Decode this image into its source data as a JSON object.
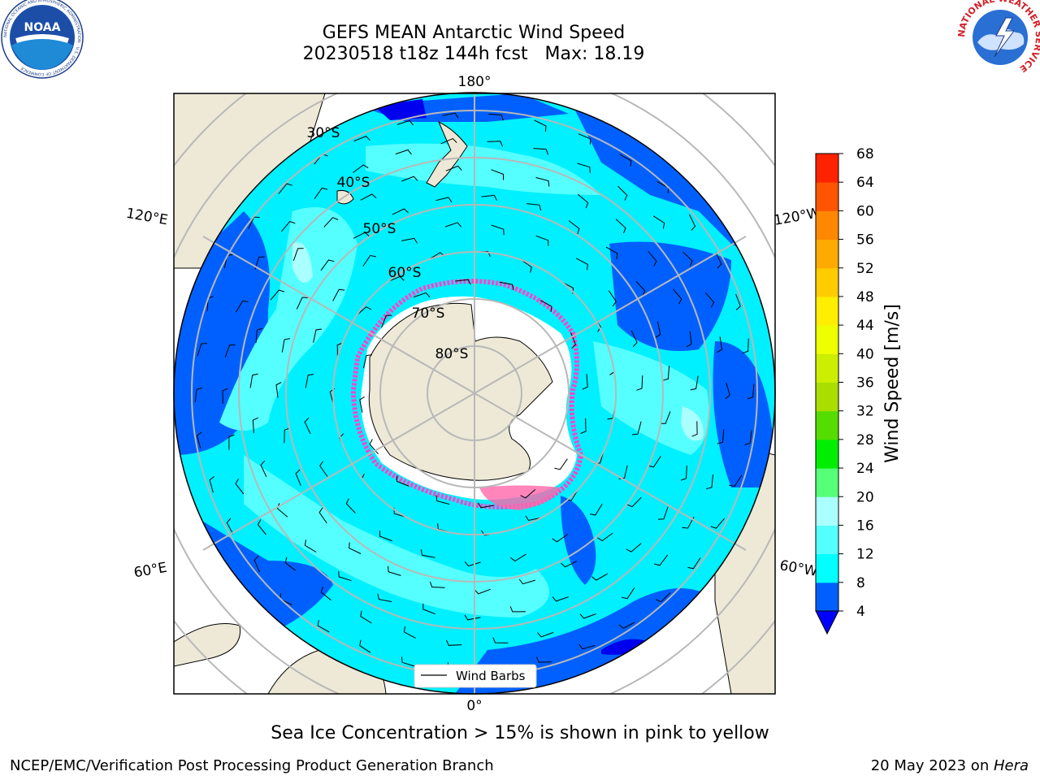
{
  "header": {
    "title": "GEFS MEAN Antarctic Wind Speed",
    "subtitle": "20230518 t18z 144h fcst   Max: 18.19"
  },
  "logos": {
    "left": "NOAA",
    "left_ring": "NATIONAL OCEANIC AND ATMOSPHERIC ADMINISTRATION · U.S. DEPARTMENT OF COMMERCE",
    "right_ring": "NATIONAL WEATHER SERVICE"
  },
  "map": {
    "lon_labels": {
      "top": "180°",
      "bottom": "0°",
      "upper_left": "120°E",
      "lower_left": "60°E",
      "upper_right": "120°W",
      "lower_right": "60°W"
    },
    "lat_labels": [
      "30°S",
      "40°S",
      "50°S",
      "60°S",
      "70°S",
      "80°S"
    ],
    "legend_label": "Wind Barbs"
  },
  "colorbar": {
    "label": "Wind Speed [m/s]",
    "ticks": [
      "4",
      "8",
      "12",
      "16",
      "20",
      "24",
      "28",
      "32",
      "36",
      "40",
      "44",
      "48",
      "52",
      "56",
      "60",
      "64",
      "68"
    ],
    "colors": [
      "#0060ff",
      "#00ffff",
      "#55ffff",
      "#aaffff",
      "#55ff77",
      "#00ee00",
      "#55dd00",
      "#aadd00",
      "#ccee00",
      "#eeff00",
      "#ffee00",
      "#ffcc00",
      "#ffaa00",
      "#ff8800",
      "#ff5500",
      "#ff2200",
      "#ff0000"
    ],
    "under_color": "#0000ff"
  },
  "note": "Sea Ice Concentration > 15% is shown in pink to yellow",
  "footer": {
    "left": "NCEP/EMC/Verification Post Processing Product Generation Branch",
    "right_prefix": "20 May 2023 on ",
    "right_host": "Hera"
  }
}
